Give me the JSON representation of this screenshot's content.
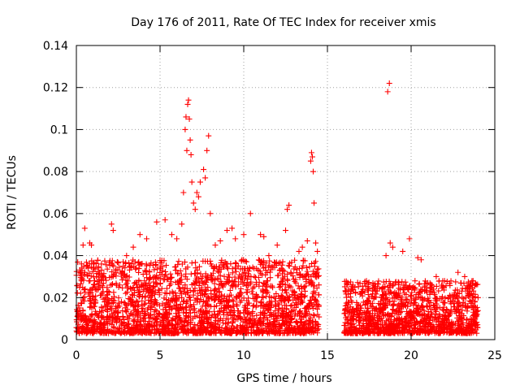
{
  "chart_data": {
    "type": "scatter",
    "title": "Day 176 of 2011, Rate Of TEC Index for receiver xmis",
    "xlabel": "GPS time / hours",
    "ylabel": "ROTI / TECUs",
    "xlim": [
      0,
      25
    ],
    "ylim": [
      0,
      0.14
    ],
    "x_ticks": [
      0,
      5,
      10,
      15,
      20,
      25
    ],
    "x_tick_labels": [
      "0",
      "5",
      "10",
      "15",
      "20",
      "25"
    ],
    "y_ticks": [
      0,
      0.02,
      0.04,
      0.06,
      0.08,
      0.1,
      0.12,
      0.14
    ],
    "y_tick_labels": [
      "0",
      "0.02",
      "0.04",
      "0.06",
      "0.08",
      "0.1",
      "0.12",
      "0.14"
    ],
    "grid": true,
    "marker": "plus",
    "color": "#ff0000",
    "series": [
      {
        "name": "ROTI",
        "points": [
          [
            0.3,
            0.028
          ],
          [
            0.4,
            0.045
          ],
          [
            0.5,
            0.053
          ],
          [
            0.7,
            0.034
          ],
          [
            0.8,
            0.046
          ],
          [
            0.9,
            0.045
          ],
          [
            1.2,
            0.03
          ],
          [
            1.5,
            0.036
          ],
          [
            2.1,
            0.055
          ],
          [
            2.2,
            0.052
          ],
          [
            2.8,
            0.035
          ],
          [
            3.0,
            0.04
          ],
          [
            3.4,
            0.044
          ],
          [
            3.8,
            0.05
          ],
          [
            4.2,
            0.048
          ],
          [
            4.8,
            0.056
          ],
          [
            5.3,
            0.057
          ],
          [
            5.7,
            0.05
          ],
          [
            6.0,
            0.048
          ],
          [
            6.3,
            0.055
          ],
          [
            6.4,
            0.07
          ],
          [
            6.5,
            0.1
          ],
          [
            6.55,
            0.106
          ],
          [
            6.6,
            0.09
          ],
          [
            6.65,
            0.112
          ],
          [
            6.7,
            0.114
          ],
          [
            6.75,
            0.105
          ],
          [
            6.8,
            0.095
          ],
          [
            6.85,
            0.088
          ],
          [
            6.9,
            0.075
          ],
          [
            7.0,
            0.065
          ],
          [
            7.1,
            0.062
          ],
          [
            7.2,
            0.07
          ],
          [
            7.3,
            0.068
          ],
          [
            7.4,
            0.075
          ],
          [
            7.6,
            0.081
          ],
          [
            7.7,
            0.077
          ],
          [
            7.8,
            0.09
          ],
          [
            7.9,
            0.097
          ],
          [
            8.0,
            0.06
          ],
          [
            8.3,
            0.045
          ],
          [
            8.6,
            0.047
          ],
          [
            9.0,
            0.052
          ],
          [
            9.3,
            0.053
          ],
          [
            9.5,
            0.048
          ],
          [
            10.0,
            0.05
          ],
          [
            10.4,
            0.06
          ],
          [
            11.0,
            0.05
          ],
          [
            11.2,
            0.049
          ],
          [
            11.5,
            0.04
          ],
          [
            12.0,
            0.045
          ],
          [
            12.5,
            0.052
          ],
          [
            12.6,
            0.062
          ],
          [
            12.7,
            0.064
          ],
          [
            13.3,
            0.042
          ],
          [
            13.5,
            0.044
          ],
          [
            13.8,
            0.047
          ],
          [
            14.0,
            0.085
          ],
          [
            14.05,
            0.089
          ],
          [
            14.1,
            0.087
          ],
          [
            14.15,
            0.08
          ],
          [
            14.2,
            0.065
          ],
          [
            14.3,
            0.046
          ],
          [
            14.4,
            0.042
          ],
          [
            18.5,
            0.04
          ],
          [
            18.6,
            0.118
          ],
          [
            18.7,
            0.122
          ],
          [
            18.75,
            0.046
          ],
          [
            18.9,
            0.044
          ],
          [
            19.5,
            0.042
          ],
          [
            19.9,
            0.048
          ],
          [
            20.4,
            0.039
          ],
          [
            20.6,
            0.038
          ],
          [
            21.5,
            0.03
          ],
          [
            22.8,
            0.032
          ],
          [
            23.2,
            0.03
          ],
          [
            23.7,
            0.028
          ],
          [
            24.0,
            0.02
          ]
        ],
        "density_envelope": [
          {
            "x_start": 0.0,
            "x_end": 14.5,
            "y_low": 0.003,
            "y_high": 0.038
          },
          {
            "x_start": 16.0,
            "x_end": 24.0,
            "y_low": 0.003,
            "y_high": 0.028
          }
        ]
      }
    ]
  }
}
